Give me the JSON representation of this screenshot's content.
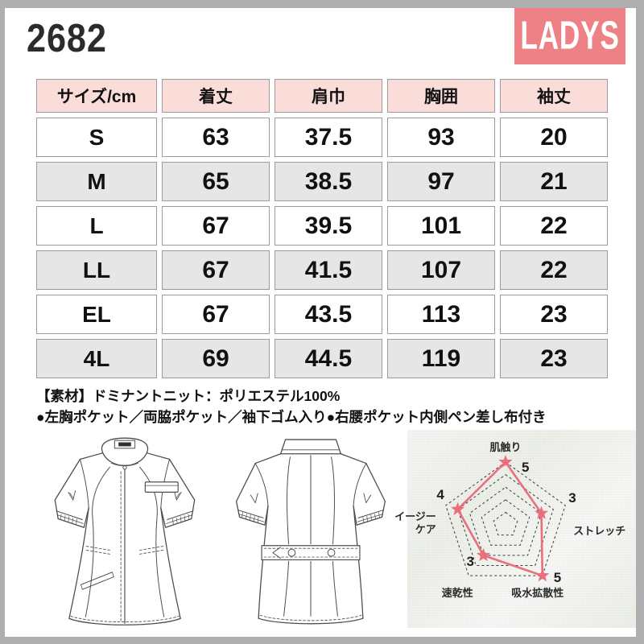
{
  "header": {
    "product_code": "2682",
    "badge_label": "LADYS"
  },
  "size_table": {
    "columns": [
      "サイズ/cm",
      "着丈",
      "肩巾",
      "胸囲",
      "袖丈"
    ],
    "rows": [
      {
        "size": "S",
        "values": [
          "63",
          "37.5",
          "93",
          "20"
        ]
      },
      {
        "size": "M",
        "values": [
          "65",
          "38.5",
          "97",
          "21"
        ]
      },
      {
        "size": "L",
        "values": [
          "67",
          "39.5",
          "101",
          "22"
        ]
      },
      {
        "size": "LL",
        "values": [
          "67",
          "41.5",
          "107",
          "22"
        ]
      },
      {
        "size": "EL",
        "values": [
          "67",
          "43.5",
          "113",
          "23"
        ]
      },
      {
        "size": "4L",
        "values": [
          "69",
          "44.5",
          "119",
          "23"
        ]
      }
    ]
  },
  "details": {
    "material": "【素材】ドミナントニット：ポリエステル100%",
    "features": "●左胸ポケット／両脇ポケット／袖下ゴム入り●右腰ポケット内側ペン差し布付き"
  },
  "illustrations": {
    "front_alt": "garment front view line drawing",
    "back_alt": "garment back view line drawing"
  },
  "chart_data": {
    "type": "radar",
    "categories": [
      "肌触り",
      "ストレッチ",
      "吸水拡散性",
      "速乾性",
      "イージーケア"
    ],
    "values": [
      5,
      3,
      5,
      3,
      4
    ],
    "scale_max": 5,
    "rings": 5,
    "grid_style": "dashed",
    "legend_position": "none",
    "line_color": "#e8707d",
    "marker": "star"
  },
  "colors": {
    "badge_bg": "#ed8186",
    "table_header_bg": "#fadcd8",
    "row_alt_bg": "#e6e6e6",
    "cell_border": "#9b9b9b",
    "frame": "#afafaf",
    "radar_line": "#e8707d"
  }
}
